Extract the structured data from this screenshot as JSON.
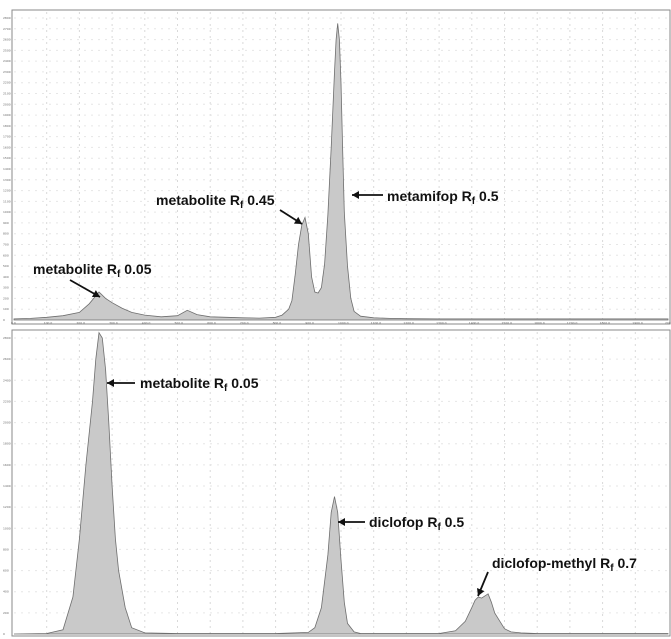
{
  "chart_data": [
    {
      "type": "area",
      "panel": "top",
      "xlim": [
        0,
        2000
      ],
      "ylim": [
        0,
        2800
      ],
      "x_ticks": [
        "0.0",
        "100.0",
        "200.0",
        "300.0",
        "400.0",
        "500.0",
        "600.0",
        "700.0",
        "800.0",
        "900.0",
        "1000.0",
        "1100.0",
        "1200.0",
        "1300.0",
        "1400.0",
        "1500.0",
        "1600.0",
        "1700.0",
        "1800.0",
        "1900.0",
        "2000.0"
      ],
      "y_ticks": [
        "0",
        "100",
        "200",
        "300",
        "400",
        "500",
        "600",
        "700",
        "800",
        "900",
        "1000",
        "1100",
        "1200",
        "1300",
        "1400",
        "1500",
        "1600",
        "1700",
        "1800",
        "1900",
        "2000",
        "2100",
        "2200",
        "2300",
        "2400",
        "2500",
        "2600",
        "2700",
        "2800"
      ],
      "series": [
        {
          "x": [
            0,
            50,
            100,
            150,
            200,
            230,
            260,
            280,
            300,
            330,
            360,
            400,
            450,
            500,
            530,
            560,
            600,
            650,
            700,
            750,
            800,
            820,
            840,
            850,
            860,
            870,
            880,
            890,
            900,
            910,
            920,
            930,
            940,
            950,
            960,
            970,
            980,
            985,
            990,
            995,
            1000,
            1005,
            1010,
            1020,
            1030,
            1040,
            1060,
            1100,
            1150,
            1200,
            1300,
            1400,
            1500,
            1600,
            1700,
            1800,
            1900,
            2000
          ],
          "y": [
            10,
            15,
            25,
            40,
            70,
            150,
            260,
            200,
            160,
            110,
            70,
            45,
            30,
            40,
            90,
            50,
            30,
            25,
            20,
            18,
            25,
            45,
            100,
            180,
            420,
            700,
            880,
            950,
            800,
            400,
            260,
            250,
            300,
            520,
            980,
            1600,
            2300,
            2600,
            2750,
            2600,
            2200,
            1600,
            1000,
            500,
            200,
            80,
            35,
            20,
            15,
            12,
            10,
            10,
            10,
            10,
            10,
            10,
            10,
            10
          ]
        }
      ],
      "annotations": [
        {
          "text": "metabolite R",
          "sub": "f",
          "suffix": " 0.05"
        },
        {
          "text": "metabolite R",
          "sub": "f",
          "suffix": " 0.45"
        },
        {
          "text": "metamifop R",
          "sub": "f",
          "suffix": " 0.5"
        }
      ]
    },
    {
      "type": "area",
      "panel": "bottom",
      "xlim": [
        0,
        2000
      ],
      "ylim": [
        0,
        2800
      ],
      "y_ticks": [
        "0",
        "200",
        "400",
        "600",
        "800",
        "1000",
        "1200",
        "1400",
        "1600",
        "1800",
        "2000",
        "2200",
        "2400",
        "2600",
        "2800"
      ],
      "series": [
        {
          "x": [
            0,
            100,
            150,
            180,
            200,
            220,
            240,
            250,
            260,
            270,
            280,
            290,
            300,
            310,
            320,
            340,
            360,
            400,
            500,
            600,
            700,
            800,
            900,
            920,
            940,
            960,
            970,
            980,
            990,
            1000,
            1010,
            1020,
            1040,
            1060,
            1100,
            1200,
            1300,
            1350,
            1380,
            1400,
            1410,
            1420,
            1430,
            1440,
            1450,
            1460,
            1470,
            1490,
            1500,
            1520,
            1550,
            1600,
            1700,
            1800,
            1900,
            2000
          ],
          "y": [
            0,
            5,
            40,
            350,
            900,
            1600,
            2200,
            2600,
            2850,
            2800,
            2500,
            2000,
            1400,
            900,
            600,
            250,
            60,
            10,
            5,
            5,
            5,
            5,
            15,
            60,
            250,
            750,
            1150,
            1300,
            1150,
            700,
            300,
            100,
            20,
            5,
            5,
            5,
            5,
            30,
            120,
            250,
            320,
            350,
            340,
            360,
            380,
            300,
            200,
            100,
            50,
            20,
            10,
            5,
            5,
            5,
            5,
            5
          ]
        }
      ],
      "annotations": [
        {
          "text": "metabolite R",
          "sub": "f",
          "suffix": " 0.05"
        },
        {
          "text": "diclofop R",
          "sub": "f",
          "suffix": " 0.5"
        },
        {
          "text": "diclofop-methyl R",
          "sub": "f",
          "suffix": " 0.7"
        }
      ]
    }
  ]
}
